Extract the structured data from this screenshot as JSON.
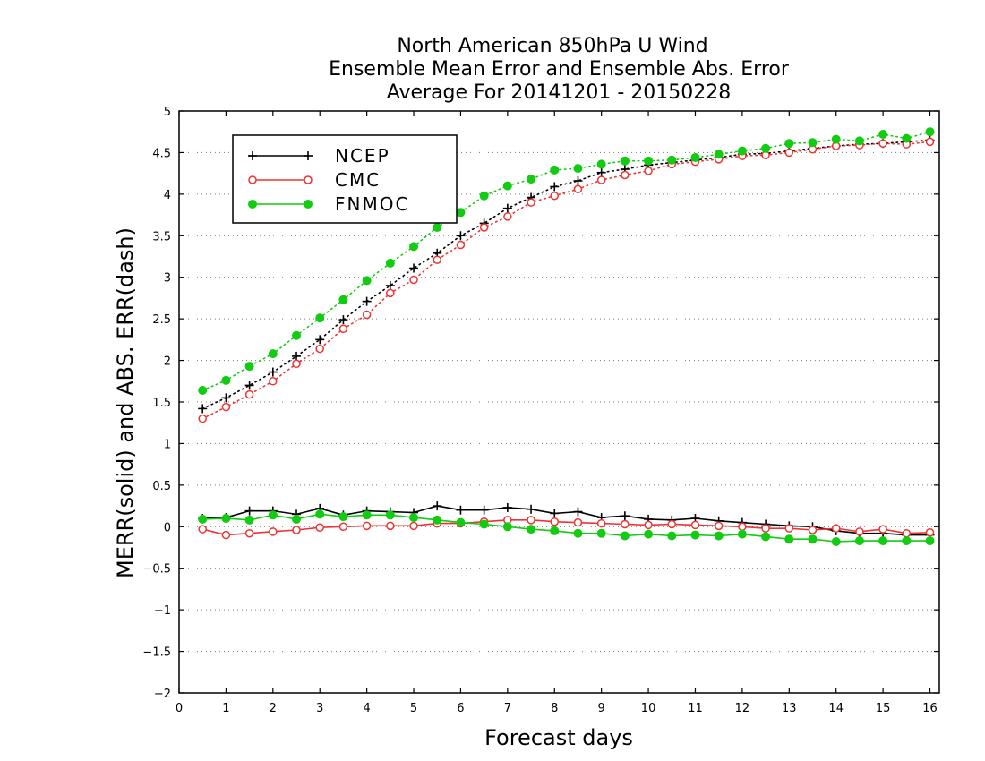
{
  "chart_data": {
    "type": "line",
    "title": [
      "North American 850hPa U Wind",
      "Ensemble Mean Error and Ensemble Abs. Error",
      "Average For 20141201 - 20150228"
    ],
    "xlabel": "Forecast days",
    "ylabel": "MERR(solid) and ABS. ERR(dash)",
    "xlim": [
      0,
      16.2
    ],
    "ylim": [
      -2,
      5
    ],
    "x_ticks": [
      0,
      1,
      2,
      3,
      4,
      5,
      6,
      7,
      8,
      9,
      10,
      11,
      12,
      13,
      14,
      15,
      16
    ],
    "y_ticks": [
      -2,
      -1.5,
      -1,
      -0.5,
      0,
      0.5,
      1,
      1.5,
      2,
      2.5,
      3,
      3.5,
      4,
      4.5,
      5
    ],
    "y_tick_labels": [
      "−2",
      "−1.5",
      "−1",
      "−0.5",
      "0",
      "0.5",
      "1",
      "1.5",
      "2",
      "2.5",
      "3",
      "3.5",
      "4",
      "4.5",
      "5"
    ],
    "grid": "horizontal dotted",
    "legend_position": "top-left",
    "x": [
      0.5,
      1.0,
      1.5,
      2.0,
      2.5,
      3.0,
      3.5,
      4.0,
      4.5,
      5.0,
      5.5,
      6.0,
      6.5,
      7.0,
      7.5,
      8.0,
      8.5,
      9.0,
      9.5,
      10.0,
      10.5,
      11.0,
      11.5,
      12.0,
      12.5,
      13.0,
      13.5,
      14.0,
      14.5,
      15.0,
      15.5,
      16.0
    ],
    "series": [
      {
        "name": "NCEP",
        "color": "#000000",
        "marker": "plus",
        "merr": [
          0.1,
          0.11,
          0.19,
          0.19,
          0.15,
          0.22,
          0.14,
          0.19,
          0.18,
          0.17,
          0.25,
          0.2,
          0.2,
          0.23,
          0.21,
          0.16,
          0.18,
          0.11,
          0.13,
          0.09,
          0.08,
          0.1,
          0.07,
          0.05,
          0.03,
          0.01,
          0.0,
          -0.05,
          -0.08,
          -0.08,
          -0.1,
          -0.1
        ],
        "abs_err": [
          1.42,
          1.55,
          1.7,
          1.86,
          2.05,
          2.25,
          2.49,
          2.71,
          2.9,
          3.11,
          3.29,
          3.5,
          3.65,
          3.83,
          3.96,
          4.09,
          4.16,
          4.26,
          4.3,
          4.35,
          4.38,
          4.41,
          4.44,
          4.48,
          4.49,
          4.52,
          4.55,
          4.58,
          4.6,
          4.61,
          4.63,
          4.65
        ]
      },
      {
        "name": "CMC",
        "color": "#ee3333",
        "marker": "open-circle",
        "merr": [
          -0.03,
          -0.1,
          -0.08,
          -0.06,
          -0.04,
          -0.01,
          0.0,
          0.01,
          0.01,
          0.01,
          0.04,
          0.04,
          0.06,
          0.08,
          0.08,
          0.06,
          0.05,
          0.04,
          0.03,
          0.02,
          0.03,
          0.02,
          0.01,
          0.0,
          -0.02,
          -0.02,
          -0.04,
          -0.02,
          -0.06,
          -0.03,
          -0.08,
          -0.07
        ],
        "abs_err": [
          1.3,
          1.44,
          1.59,
          1.75,
          1.96,
          2.14,
          2.38,
          2.55,
          2.81,
          2.97,
          3.21,
          3.39,
          3.6,
          3.73,
          3.9,
          3.98,
          4.06,
          4.17,
          4.23,
          4.28,
          4.36,
          4.39,
          4.42,
          4.46,
          4.47,
          4.5,
          4.54,
          4.58,
          4.59,
          4.61,
          4.6,
          4.63
        ]
      },
      {
        "name": "FNMOC",
        "color": "#11cc11",
        "marker": "filled-circle",
        "merr": [
          0.09,
          0.1,
          0.08,
          0.14,
          0.09,
          0.15,
          0.12,
          0.14,
          0.14,
          0.11,
          0.08,
          0.05,
          0.03,
          0.0,
          -0.03,
          -0.05,
          -0.08,
          -0.08,
          -0.11,
          -0.09,
          -0.11,
          -0.1,
          -0.11,
          -0.09,
          -0.12,
          -0.15,
          -0.15,
          -0.18,
          -0.17,
          -0.17,
          -0.17,
          -0.17
        ],
        "abs_err": [
          1.64,
          1.76,
          1.93,
          2.08,
          2.3,
          2.51,
          2.73,
          2.96,
          3.17,
          3.37,
          3.6,
          3.78,
          3.98,
          4.1,
          4.18,
          4.29,
          4.31,
          4.36,
          4.4,
          4.4,
          4.41,
          4.44,
          4.48,
          4.52,
          4.55,
          4.61,
          4.62,
          4.66,
          4.64,
          4.72,
          4.67,
          4.75
        ]
      }
    ]
  }
}
